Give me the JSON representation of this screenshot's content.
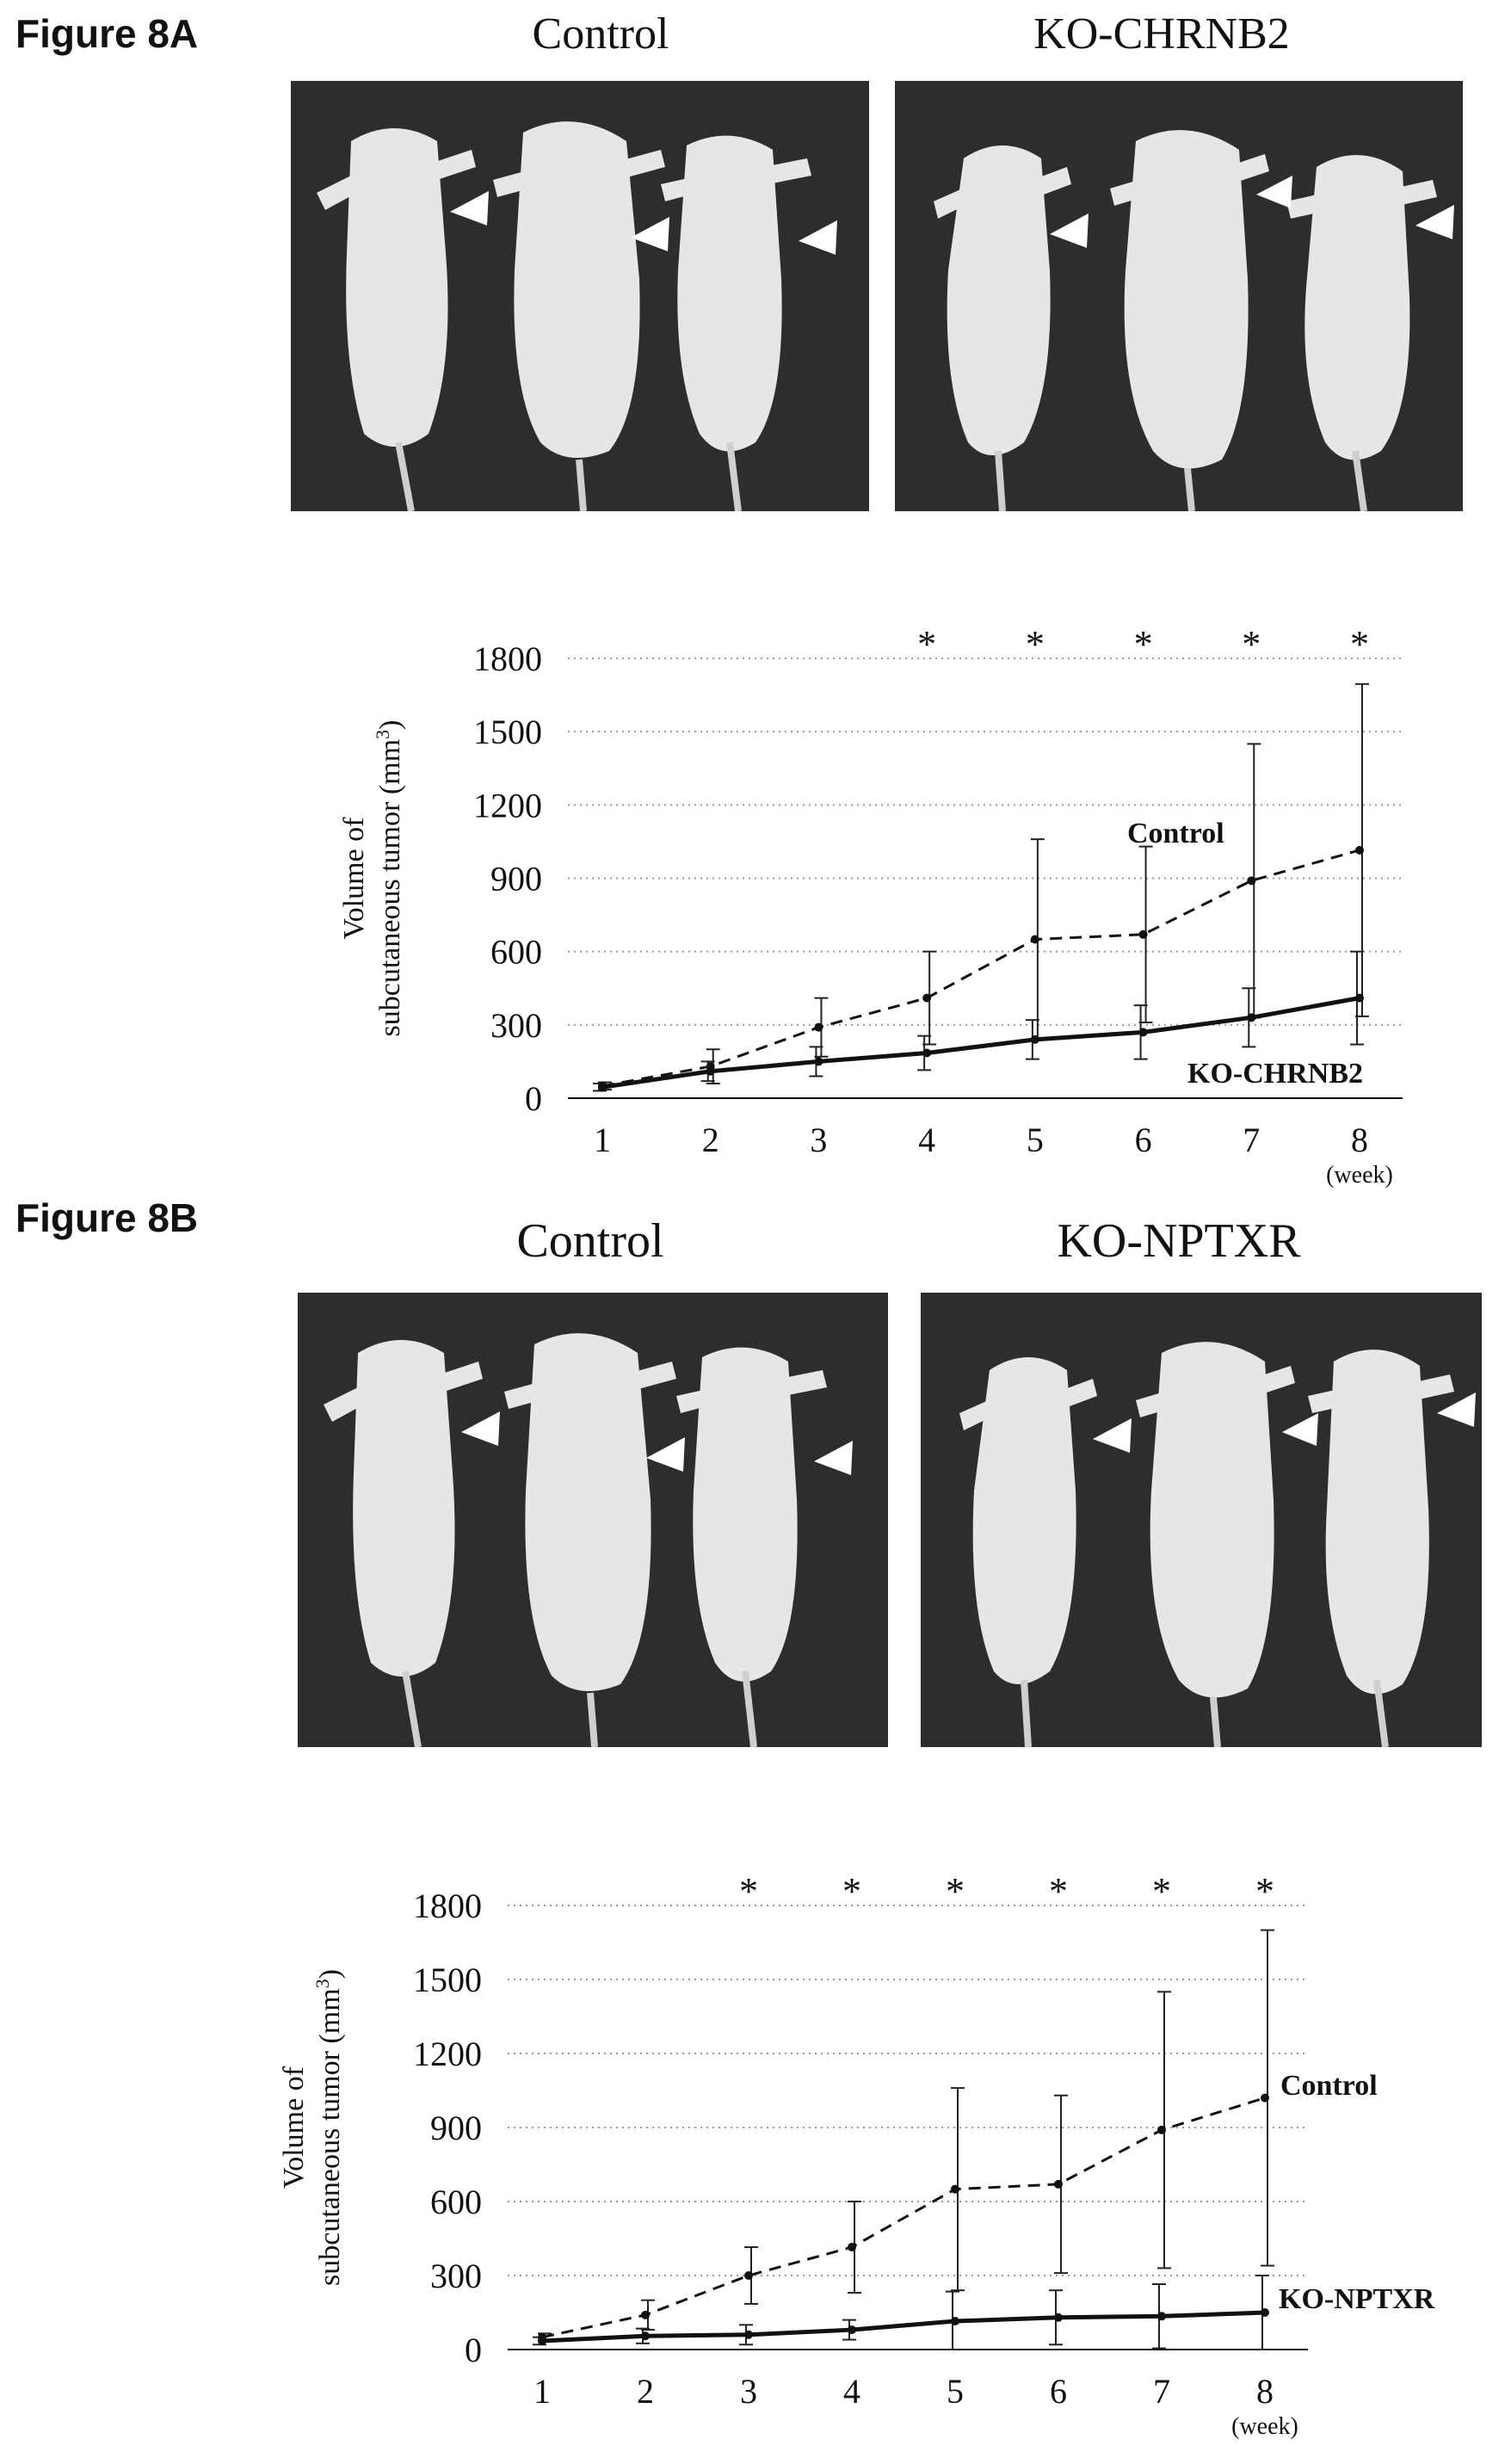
{
  "figA": {
    "title": "Figure 8A",
    "photo_left_label": "Control",
    "photo_right_label": "KO-CHRNB2"
  },
  "figB": {
    "title": "Figure 8B",
    "photo_left_label": "Control",
    "photo_right_label": "KO-NPTXR"
  },
  "chart_data": [
    {
      "type": "line",
      "id": "8A",
      "ylabel_line1": "Volume of",
      "ylabel_line2": "subcutaneous tumor (mm",
      "ylabel_sup": "3",
      "ylabel_end": ")",
      "x": [
        1,
        2,
        3,
        4,
        5,
        6,
        7,
        8
      ],
      "x_unit": "(week)",
      "ylim": [
        0,
        1800
      ],
      "yticks": [
        0,
        300,
        600,
        900,
        1200,
        1500,
        1800
      ],
      "grid": true,
      "series": [
        {
          "name": "Control",
          "style": "dashed",
          "values": [
            50,
            130,
            290,
            410,
            650,
            670,
            890,
            1015
          ],
          "err": [
            15,
            70,
            120,
            190,
            410,
            360,
            560,
            680
          ]
        },
        {
          "name": "KO-CHRNB2",
          "style": "solid",
          "values": [
            45,
            110,
            150,
            185,
            240,
            270,
            330,
            410
          ],
          "err": [
            15,
            40,
            60,
            70,
            80,
            110,
            120,
            190
          ]
        }
      ],
      "significance": [
        4,
        5,
        6,
        7,
        8
      ],
      "sig_symbol": "*"
    },
    {
      "type": "line",
      "id": "8B",
      "ylabel_line1": "Volume of",
      "ylabel_line2": "subcutaneous tumor (mm",
      "ylabel_sup": "3",
      "ylabel_end": ")",
      "x": [
        1,
        2,
        3,
        4,
        5,
        6,
        7,
        8
      ],
      "x_unit": "(week)",
      "ylim": [
        0,
        1800
      ],
      "yticks": [
        0,
        300,
        600,
        900,
        1200,
        1500,
        1800
      ],
      "grid": true,
      "series": [
        {
          "name": "Control",
          "style": "dashed",
          "values": [
            50,
            140,
            300,
            415,
            650,
            670,
            890,
            1020
          ],
          "err": [
            15,
            60,
            115,
            185,
            410,
            360,
            560,
            680
          ]
        },
        {
          "name": "KO-NPTXR",
          "style": "solid",
          "values": [
            35,
            55,
            60,
            80,
            115,
            130,
            135,
            150
          ],
          "err": [
            15,
            30,
            40,
            40,
            120,
            110,
            130,
            150
          ]
        }
      ],
      "significance": [
        3,
        4,
        5,
        6,
        7,
        8
      ],
      "sig_symbol": "*"
    }
  ]
}
